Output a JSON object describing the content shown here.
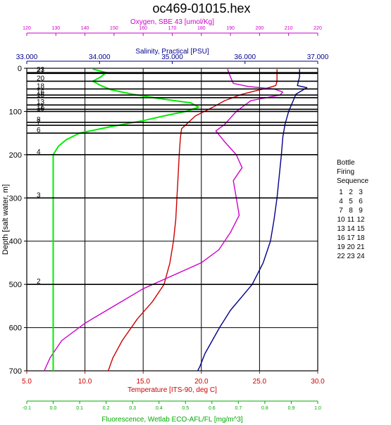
{
  "chart_data": {
    "type": "line",
    "title": "oc469-01015.hex",
    "y_axis": {
      "label": "Depth [salt water, m]",
      "range": [
        0,
        700
      ],
      "ticks": [
        0,
        100,
        200,
        300,
        400,
        500,
        600,
        700
      ],
      "inverted": true
    },
    "top_axes": [
      {
        "id": "oxygen",
        "label": "Oxygen, SBE 43 [umol/Kg]",
        "color": "#cc00cc",
        "range": [
          120,
          220
        ],
        "ticks": [
          120,
          130,
          140,
          150,
          160,
          170,
          180,
          190,
          200,
          210,
          220
        ],
        "tick_labels": [
          "120",
          "130",
          "140",
          "150",
          "160",
          "170",
          "180",
          "190",
          "200",
          "210",
          "220"
        ]
      },
      {
        "id": "salinity",
        "label": "Salinity, Practical [PSU]",
        "color": "#00008b",
        "range": [
          33,
          37
        ],
        "ticks": [
          33,
          34,
          35,
          36,
          37
        ],
        "tick_labels": [
          "33.000",
          "34.000",
          "35.000",
          "36.000",
          "37.000"
        ]
      }
    ],
    "bottom_axes": [
      {
        "id": "temperature",
        "label": "Temperature [ITS-90, deg C]",
        "color": "#cc0000",
        "range": [
          5,
          30
        ],
        "ticks": [
          5,
          10,
          15,
          20,
          25,
          30
        ],
        "tick_labels": [
          "5.0",
          "10.0",
          "15.0",
          "20.0",
          "25.0",
          "30.0"
        ]
      },
      {
        "id": "fluorescence",
        "label": "Fluorescence, Wetlab ECO-AFL/FL [mg/m^3]",
        "color": "#00aa00",
        "range": [
          -0.1,
          1.0
        ],
        "ticks": [
          -0.1,
          0.0,
          0.1,
          0.2,
          0.3,
          0.4,
          0.5,
          0.6,
          0.7,
          0.8,
          0.9,
          1.0
        ],
        "tick_labels": [
          "-0.1",
          "0.0",
          "0.1",
          "0.2",
          "0.3",
          "0.4",
          "0.5",
          "0.6",
          "0.7",
          "0.8",
          "0.9",
          "1.0"
        ]
      }
    ],
    "series": [
      {
        "axis": "temperature",
        "color": "#cc0000",
        "points": [
          [
            26.5,
            2
          ],
          [
            26.5,
            15
          ],
          [
            26.5,
            30
          ],
          [
            26.4,
            40
          ],
          [
            25.8,
            45
          ],
          [
            25.0,
            50
          ],
          [
            23.5,
            60
          ],
          [
            22.0,
            75
          ],
          [
            21.0,
            90
          ],
          [
            19.5,
            110
          ],
          [
            18.7,
            130
          ],
          [
            18.3,
            140
          ],
          [
            18.2,
            160
          ],
          [
            18.1,
            200
          ],
          [
            18.0,
            250
          ],
          [
            17.9,
            300
          ],
          [
            17.8,
            350
          ],
          [
            17.6,
            400
          ],
          [
            17.3,
            450
          ],
          [
            16.8,
            500
          ],
          [
            15.8,
            540
          ],
          [
            14.5,
            580
          ],
          [
            13.2,
            630
          ],
          [
            12.4,
            670
          ],
          [
            12.0,
            700
          ]
        ]
      },
      {
        "axis": "salinity",
        "color": "#00008b",
        "points": [
          [
            36.75,
            2
          ],
          [
            36.75,
            20
          ],
          [
            36.72,
            40
          ],
          [
            36.85,
            45
          ],
          [
            36.7,
            60
          ],
          [
            36.65,
            80
          ],
          [
            36.6,
            100
          ],
          [
            36.55,
            130
          ],
          [
            36.52,
            160
          ],
          [
            36.5,
            200
          ],
          [
            36.47,
            250
          ],
          [
            36.44,
            300
          ],
          [
            36.4,
            350
          ],
          [
            36.35,
            400
          ],
          [
            36.25,
            450
          ],
          [
            36.1,
            500
          ],
          [
            35.95,
            530
          ],
          [
            35.8,
            560
          ],
          [
            35.65,
            600
          ],
          [
            35.55,
            630
          ],
          [
            35.45,
            660
          ],
          [
            35.38,
            690
          ],
          [
            35.35,
            700
          ]
        ]
      },
      {
        "axis": "oxygen",
        "color": "#cc00cc",
        "points": [
          [
            189,
            2
          ],
          [
            190,
            20
          ],
          [
            191,
            35
          ],
          [
            196,
            42
          ],
          [
            205,
            48
          ],
          [
            208,
            55
          ],
          [
            207,
            62
          ],
          [
            197,
            75
          ],
          [
            192,
            100
          ],
          [
            188,
            130
          ],
          [
            185,
            145
          ],
          [
            188,
            170
          ],
          [
            192,
            200
          ],
          [
            194,
            230
          ],
          [
            191,
            260
          ],
          [
            192,
            300
          ],
          [
            193,
            340
          ],
          [
            190,
            380
          ],
          [
            186,
            420
          ],
          [
            180,
            450
          ],
          [
            170,
            480
          ],
          [
            160,
            510
          ],
          [
            150,
            550
          ],
          [
            140,
            590
          ],
          [
            132,
            630
          ],
          [
            128,
            670
          ],
          [
            126,
            700
          ]
        ]
      },
      {
        "axis": "fluorescence",
        "color": "#00ee00",
        "points": [
          [
            0.15,
            2
          ],
          [
            0.2,
            10
          ],
          [
            0.18,
            20
          ],
          [
            0.15,
            30
          ],
          [
            0.18,
            40
          ],
          [
            0.22,
            50
          ],
          [
            0.3,
            60
          ],
          [
            0.4,
            70
          ],
          [
            0.52,
            80
          ],
          [
            0.55,
            90
          ],
          [
            0.5,
            100
          ],
          [
            0.42,
            110
          ],
          [
            0.35,
            120
          ],
          [
            0.22,
            135
          ],
          [
            0.1,
            150
          ],
          [
            0.05,
            165
          ],
          [
            0.02,
            180
          ],
          [
            0.0,
            200
          ],
          [
            0.0,
            260
          ],
          [
            0.0,
            300
          ],
          [
            0.0,
            400
          ],
          [
            0.0,
            500
          ],
          [
            0.0,
            600
          ],
          [
            0.0,
            700
          ]
        ]
      }
    ],
    "bottle_firings": [
      {
        "label": "23",
        "depth": 10
      },
      {
        "label": "21",
        "depth": 12
      },
      {
        "label": "20",
        "depth": 30
      },
      {
        "label": "18",
        "depth": 48
      },
      {
        "label": "16",
        "depth": 62
      },
      {
        "label": "15",
        "depth": 68
      },
      {
        "label": "13",
        "depth": 85
      },
      {
        "label": "11",
        "depth": 95
      },
      {
        "label": "10",
        "depth": 100
      },
      {
        "label": "8",
        "depth": 125
      },
      {
        "label": "7",
        "depth": 132
      },
      {
        "label": "6",
        "depth": 150
      },
      {
        "label": "4",
        "depth": 200
      },
      {
        "label": "3",
        "depth": 300
      },
      {
        "label": "2",
        "depth": 500
      }
    ],
    "bottle_legend": {
      "title_lines": [
        "Bottle",
        "Firing",
        "Sequence"
      ],
      "rows": [
        [
          "1",
          "2",
          "3"
        ],
        [
          "4",
          "5",
          "6"
        ],
        [
          "7",
          "8",
          "9"
        ],
        [
          "10",
          "11",
          "12"
        ],
        [
          "13",
          "14",
          "15"
        ],
        [
          "16",
          "17",
          "18"
        ],
        [
          "19",
          "20",
          "21"
        ],
        [
          "22",
          "23",
          "24"
        ]
      ]
    }
  }
}
